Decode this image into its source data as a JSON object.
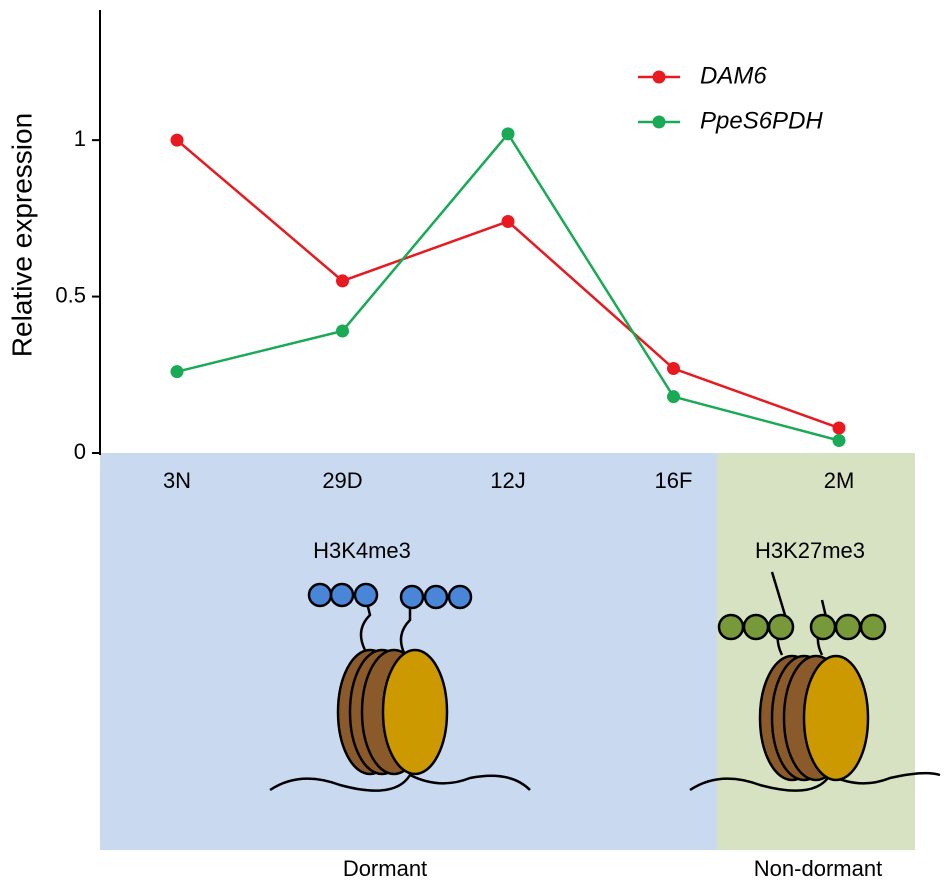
{
  "chart_data": {
    "type": "line",
    "y_label": "Relative expression",
    "categories": [
      "3N",
      "29D",
      "12J",
      "16F",
      "2M"
    ],
    "series": [
      {
        "name": "DAM6",
        "color": "#e8191f",
        "values": [
          1.0,
          0.55,
          0.74,
          0.27,
          0.08
        ]
      },
      {
        "name": "PpeS6PDH",
        "color": "#1aaa55",
        "values": [
          0.26,
          0.39,
          1.02,
          0.18,
          0.04
        ]
      }
    ],
    "ylim": [
      0,
      1.4
    ],
    "yticks": [
      0,
      0.5,
      1
    ],
    "legend": "upper right",
    "annotations": [
      "H3K4me3",
      "H3K27me3"
    ],
    "regions": [
      {
        "label": "Dormant",
        "color": "#c8d9f0"
      },
      {
        "label": "Non-dormant",
        "color": "#d6e2c1"
      }
    ]
  }
}
